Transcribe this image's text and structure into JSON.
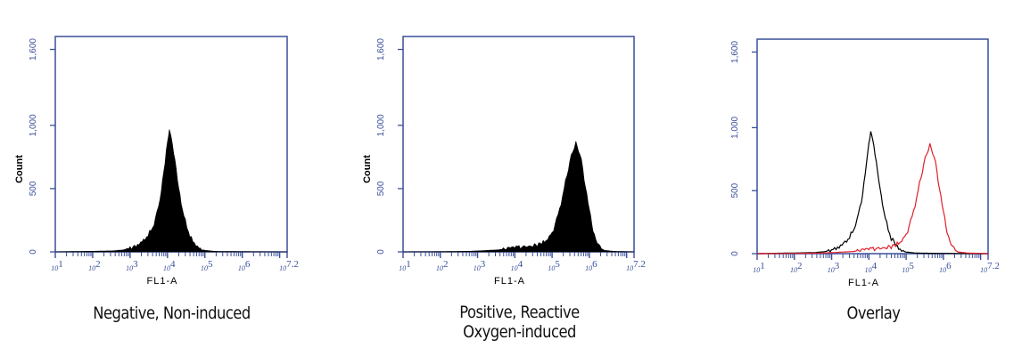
{
  "colors": {
    "axis": "#3a4f9a",
    "fill": "#000000",
    "negative_line": "#000000",
    "positive_line": "#e0202a"
  },
  "chart_data": [
    {
      "type": "area",
      "title": "Negative, Non-induced",
      "xlabel": "FL1-A",
      "ylabel": "Count",
      "x_scale": "log",
      "xlim_log10": [
        1,
        7.2
      ],
      "ylim": [
        0,
        1600
      ],
      "xtick_labels": [
        "10^1",
        "10^2",
        "10^3",
        "10^4",
        "10^5",
        "10^6",
        "10^7.2"
      ],
      "ytick_labels": [
        "0",
        "500",
        "1,000",
        "1,600"
      ],
      "series": [
        {
          "name": "Negative",
          "style": "filled",
          "peak_log10": 4.05,
          "peak_count": 965,
          "points_log10": [
            1.0,
            1.5,
            2.0,
            2.5,
            2.8,
            3.0,
            3.2,
            3.4,
            3.6,
            3.8,
            3.9,
            4.0,
            4.05,
            4.1,
            4.2,
            4.3,
            4.4,
            4.6,
            4.8,
            5.0,
            5.3,
            6.0,
            7.2
          ],
          "counts": [
            0,
            3,
            5,
            8,
            15,
            30,
            55,
            100,
            190,
            400,
            620,
            880,
            965,
            900,
            720,
            520,
            330,
            120,
            40,
            12,
            4,
            2,
            0
          ]
        }
      ]
    },
    {
      "type": "area",
      "title": "Positive, Reactive Oxygen-induced",
      "xlabel": "FL1-A",
      "ylabel": "Count",
      "x_scale": "log",
      "xlim_log10": [
        1,
        7.2
      ],
      "ylim": [
        0,
        1600
      ],
      "xtick_labels": [
        "10^1",
        "10^2",
        "10^3",
        "10^4",
        "10^5",
        "10^6",
        "10^7.2"
      ],
      "ytick_labels": [
        "0",
        "500",
        "1,000",
        "1,600"
      ],
      "series": [
        {
          "name": "Positive",
          "style": "filled",
          "peak_log10": 5.64,
          "peak_count": 860,
          "points_log10": [
            1.0,
            2.0,
            2.8,
            3.0,
            3.5,
            4.0,
            4.3,
            4.6,
            4.8,
            5.0,
            5.2,
            5.4,
            5.55,
            5.64,
            5.75,
            5.9,
            6.0,
            6.1,
            6.25,
            6.4,
            6.7,
            7.2
          ],
          "counts": [
            0,
            2,
            5,
            8,
            15,
            35,
            40,
            55,
            80,
            150,
            330,
            610,
            790,
            860,
            770,
            520,
            330,
            160,
            50,
            12,
            4,
            0
          ]
        }
      ]
    },
    {
      "type": "line",
      "title": "Overlay",
      "xlabel": "FL1-A",
      "ylabel": "",
      "x_scale": "log",
      "xlim_log10": [
        1,
        7.2
      ],
      "ylim": [
        0,
        1600
      ],
      "xtick_labels": [
        "10^1",
        "10^2",
        "10^3",
        "10^4",
        "10^5",
        "10^6",
        "10^7.2"
      ],
      "ytick_labels": [
        "0",
        "500",
        "1,000",
        "1,600"
      ],
      "series": [
        {
          "name": "Negative",
          "color": "#000000",
          "points_log10": [
            1.0,
            1.5,
            2.0,
            2.5,
            2.8,
            3.0,
            3.2,
            3.4,
            3.6,
            3.8,
            3.9,
            4.0,
            4.05,
            4.1,
            4.2,
            4.3,
            4.4,
            4.6,
            4.8,
            5.0,
            5.3,
            6.0,
            7.2
          ],
          "counts": [
            0,
            3,
            5,
            8,
            15,
            30,
            55,
            100,
            190,
            400,
            620,
            880,
            965,
            900,
            720,
            520,
            330,
            120,
            40,
            12,
            4,
            2,
            0
          ]
        },
        {
          "name": "Positive",
          "color": "#e0202a",
          "points_log10": [
            1.0,
            2.0,
            2.8,
            3.0,
            3.5,
            4.0,
            4.3,
            4.6,
            4.8,
            5.0,
            5.2,
            5.4,
            5.55,
            5.64,
            5.75,
            5.9,
            6.0,
            6.1,
            6.25,
            6.4,
            6.7,
            7.2
          ],
          "counts": [
            0,
            2,
            5,
            8,
            15,
            35,
            40,
            55,
            80,
            150,
            330,
            610,
            790,
            860,
            770,
            520,
            330,
            160,
            50,
            12,
            4,
            0
          ]
        }
      ]
    }
  ],
  "panels": [
    {
      "caption_lines": [
        "Negative, Non-induced"
      ],
      "ylabel": "Count",
      "xlabel": "FL1-A"
    },
    {
      "caption_lines": [
        "Positive, Reactive",
        "Oxygen-induced"
      ],
      "ylabel": "Count",
      "xlabel": "FL1-A"
    },
    {
      "caption_lines": [
        "Overlay"
      ],
      "ylabel": "",
      "xlabel": "FL1-A"
    }
  ]
}
